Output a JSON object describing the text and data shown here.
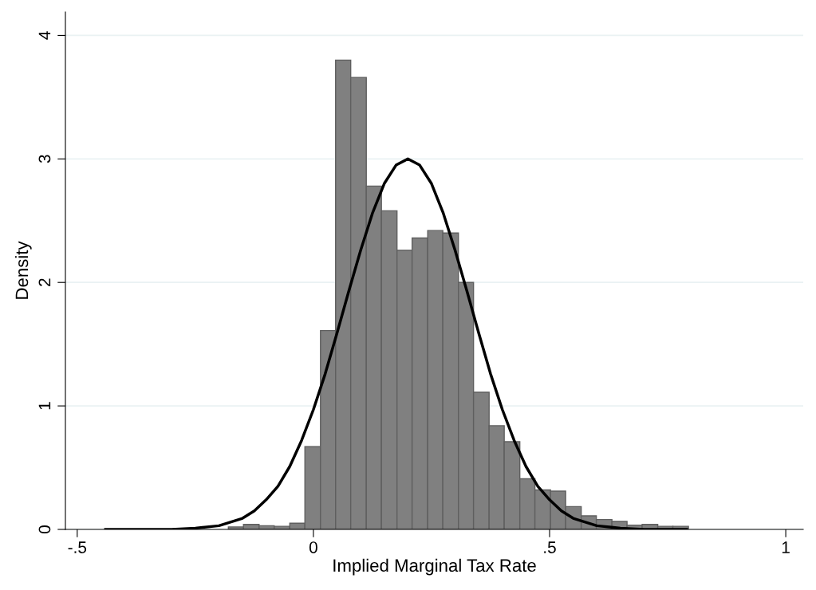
{
  "chart_data": {
    "type": "histogram",
    "xlabel": "Implied Marginal Tax Rate",
    "ylabel": "Density",
    "bins": [
      -0.18,
      -0.148,
      -0.115,
      -0.083,
      -0.05,
      -0.018,
      0.015,
      0.047,
      0.079,
      0.112,
      0.144,
      0.177,
      0.209,
      0.242,
      0.274,
      0.307,
      0.339,
      0.372,
      0.404,
      0.437,
      0.469,
      0.502,
      0.534,
      0.567,
      0.599,
      0.632,
      0.664,
      0.696,
      0.729,
      0.761,
      0.794
    ],
    "values": [
      0.02,
      0.04,
      0.03,
      0.025,
      0.05,
      0.67,
      1.61,
      3.8,
      3.66,
      2.78,
      2.58,
      2.26,
      2.36,
      2.42,
      2.4,
      2.0,
      1.11,
      0.84,
      0.71,
      0.41,
      0.32,
      0.31,
      0.185,
      0.11,
      0.08,
      0.065,
      0.035,
      0.04,
      0.025,
      0.025
    ],
    "color": "#808080",
    "series": [
      {
        "type": "line",
        "color": "#000000",
        "x": [
          -0.44,
          -0.35,
          -0.3,
          -0.25,
          -0.2,
          -0.15,
          -0.125,
          -0.1,
          -0.075,
          -0.05,
          -0.025,
          0,
          0.025,
          0.05,
          0.075,
          0.1,
          0.125,
          0.15,
          0.175,
          0.2,
          0.225,
          0.25,
          0.275,
          0.3,
          0.325,
          0.35,
          0.375,
          0.4,
          0.425,
          0.45,
          0.475,
          0.5,
          0.525,
          0.55,
          0.6,
          0.65,
          0.7,
          0.79
        ],
        "values": [
          0.0,
          0.0,
          0.0,
          0.01,
          0.03,
          0.09,
          0.15,
          0.24,
          0.35,
          0.51,
          0.72,
          0.97,
          1.26,
          1.59,
          1.93,
          2.26,
          2.56,
          2.8,
          2.95,
          3.0,
          2.95,
          2.8,
          2.56,
          2.26,
          1.93,
          1.59,
          1.26,
          0.97,
          0.72,
          0.51,
          0.35,
          0.24,
          0.15,
          0.09,
          0.03,
          0.01,
          0.0,
          0.0
        ]
      }
    ],
    "xlim": [
      -0.525,
      1.037
    ],
    "ylim": [
      0,
      4.19
    ],
    "xticks": [
      {
        "value": -0.5,
        "label": "-.5"
      },
      0,
      {
        "value": 0.5,
        "label": ".5"
      },
      1
    ],
    "yticks": [
      0,
      1,
      2,
      3,
      4
    ],
    "grid": "y"
  }
}
